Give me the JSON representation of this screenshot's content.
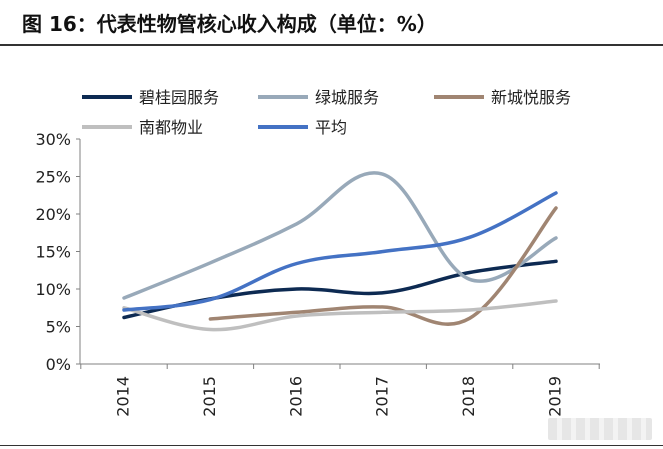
{
  "figure": {
    "title": "图 16：代表性物管核心收入构成（单位：%）"
  },
  "chart_data": {
    "type": "line",
    "title": "",
    "xlabel": "",
    "ylabel": "",
    "categories": [
      "2014",
      "2015",
      "2016",
      "2017",
      "2018",
      "2019"
    ],
    "ylim": [
      0,
      30
    ],
    "yticks": [
      "0%",
      "5%",
      "10%",
      "15%",
      "20%",
      "25%",
      "30%"
    ],
    "grid": false,
    "legend_position": "top",
    "series": [
      {
        "name": "碧桂园服务",
        "color": "#0d2a52",
        "values": [
          6.2,
          8.7,
          10.0,
          9.5,
          12.2,
          13.7
        ]
      },
      {
        "name": "绿城服务",
        "color": "#98a9b9",
        "values": [
          8.8,
          13.5,
          18.7,
          25.3,
          11.3,
          16.8
        ]
      },
      {
        "name": "新城悦服务",
        "color": "#a08572",
        "values": [
          null,
          6.0,
          6.9,
          7.6,
          6.1,
          20.8
        ]
      },
      {
        "name": "南都物业",
        "color": "#bfbfbf",
        "values": [
          7.5,
          4.6,
          6.4,
          6.9,
          7.2,
          8.4
        ]
      },
      {
        "name": "平均",
        "color": "#4472c4",
        "values": [
          7.2,
          8.6,
          13.4,
          15.0,
          16.9,
          22.8
        ]
      }
    ]
  }
}
